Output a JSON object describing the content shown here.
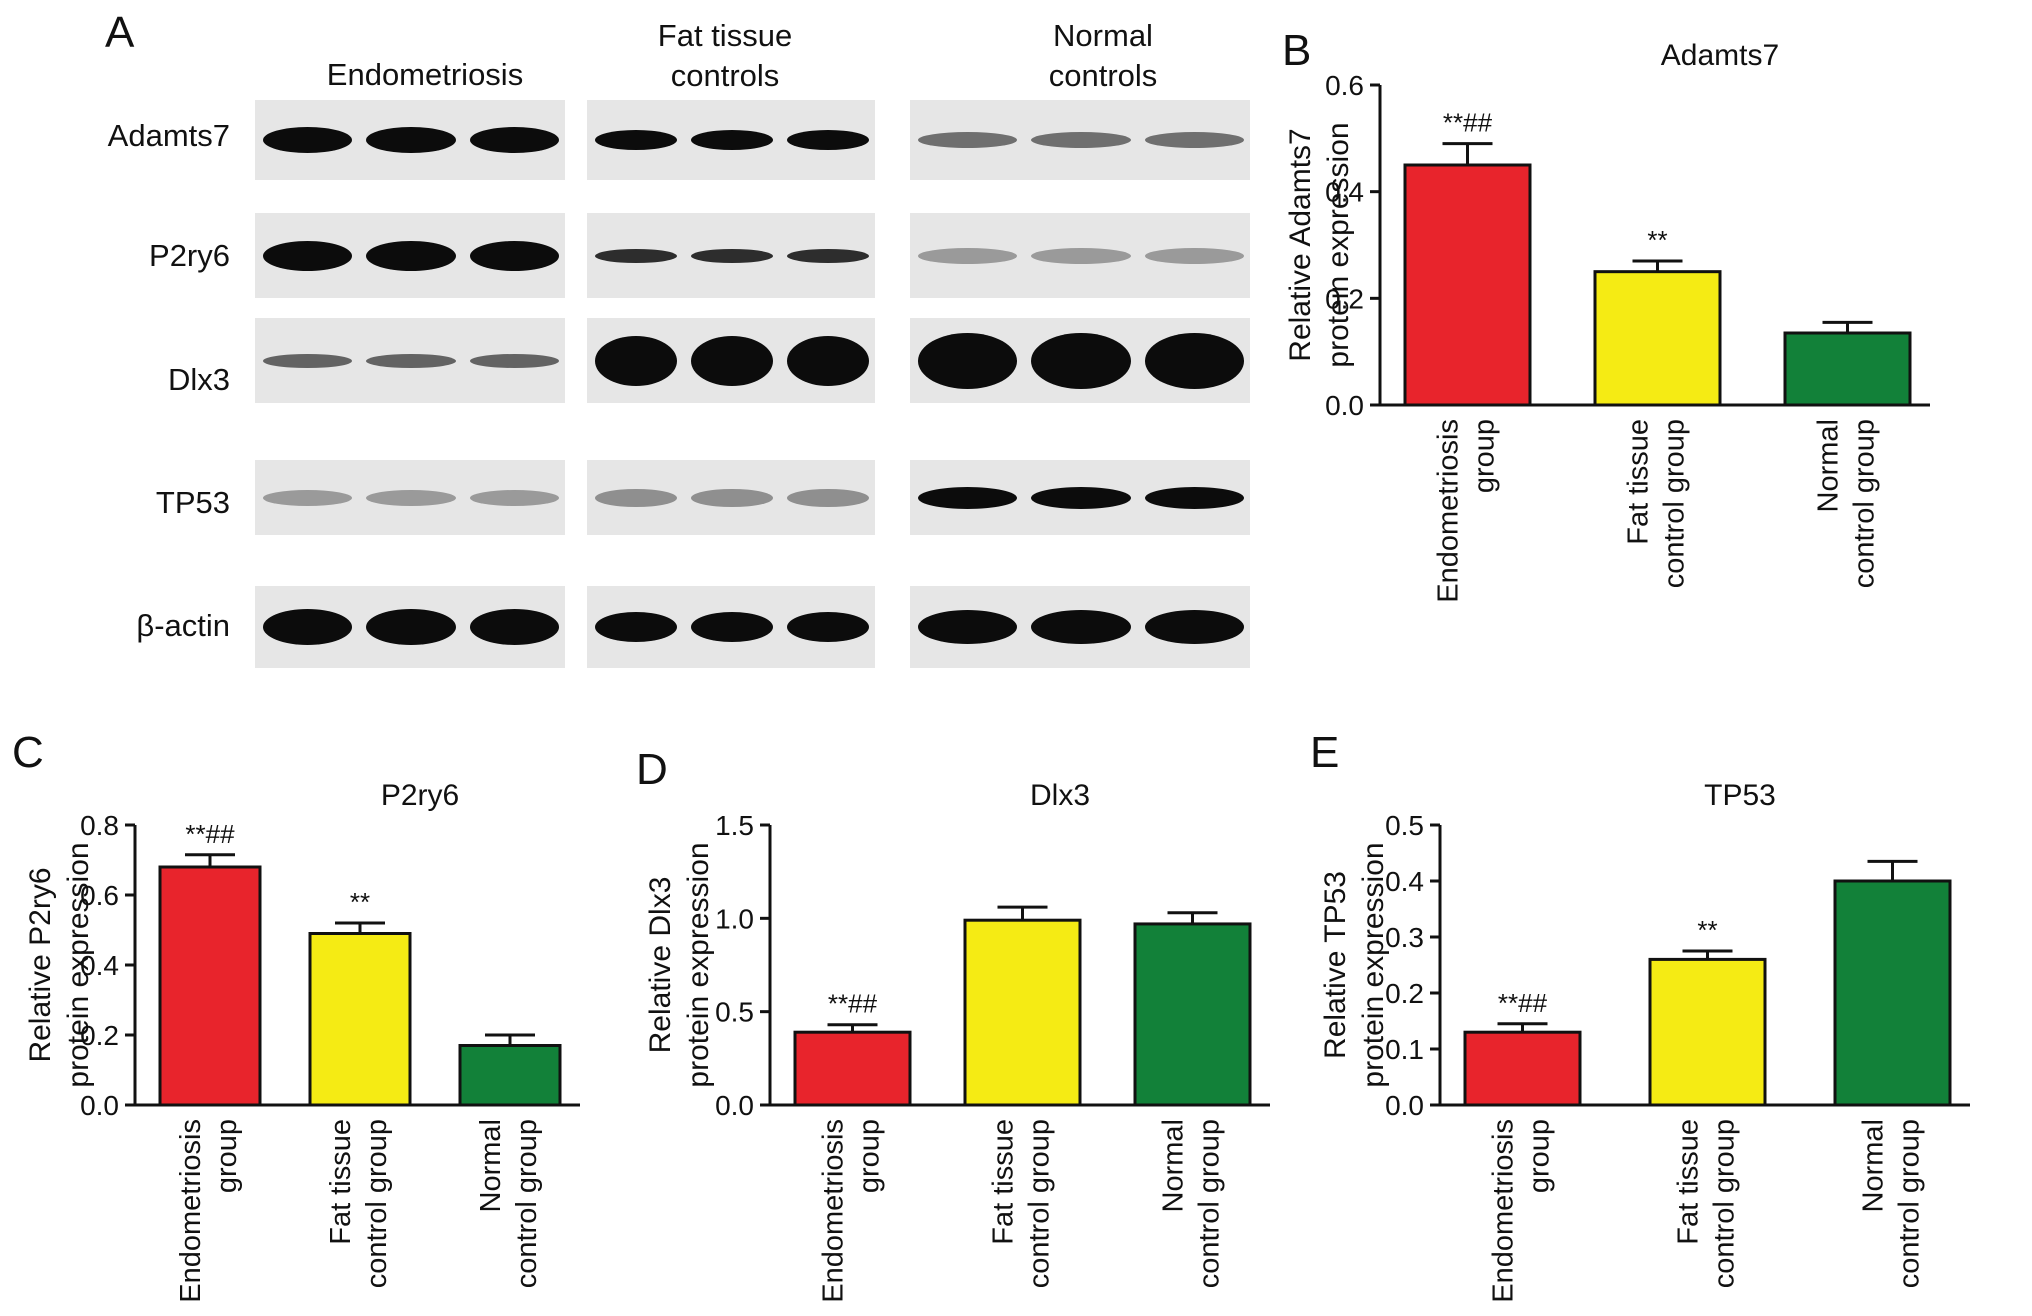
{
  "figure": {
    "panel_letters": [
      "A",
      "B",
      "C",
      "D",
      "E"
    ],
    "western_blot": {
      "columns": [
        {
          "title_lines": [
            "Endometriosis"
          ]
        },
        {
          "title_lines": [
            "Fat tissue",
            "controls"
          ]
        },
        {
          "title_lines": [
            "Normal",
            "controls"
          ]
        }
      ],
      "rows": [
        "Adamts7",
        "P2ry6",
        "Dlx3",
        "TP53",
        "β-actin"
      ]
    }
  },
  "chart_data": [
    {
      "type": "bar",
      "panel": "B",
      "title": "Adamts7",
      "ylabel_lines": [
        "Relative Adamts7",
        "protein expression"
      ],
      "ylim": [
        0,
        0.6
      ],
      "yticks": [
        "0.0",
        "0.2",
        "0.4",
        "0.6"
      ],
      "categories": [
        [
          "Endometriosis",
          "group"
        ],
        [
          "Fat tissue",
          "control group"
        ],
        [
          "Normal",
          "control group"
        ]
      ],
      "values": [
        0.45,
        0.25,
        0.135
      ],
      "errors": [
        0.04,
        0.02,
        0.02
      ],
      "annotations": [
        "**##",
        "**",
        ""
      ],
      "colors": [
        "#e8242c",
        "#f5eb14",
        "#128139"
      ]
    },
    {
      "type": "bar",
      "panel": "C",
      "title": "P2ry6",
      "ylabel_lines": [
        "Relative P2ry6",
        "protein expression"
      ],
      "ylim": [
        0,
        0.8
      ],
      "yticks": [
        "0.0",
        "0.2",
        "0.4",
        "0.6",
        "0.8"
      ],
      "categories": [
        [
          "Endometriosis",
          "group"
        ],
        [
          "Fat tissue",
          "control group"
        ],
        [
          "Normal",
          "control group"
        ]
      ],
      "values": [
        0.68,
        0.49,
        0.17
      ],
      "errors": [
        0.035,
        0.03,
        0.03
      ],
      "annotations": [
        "**##",
        "**",
        ""
      ],
      "colors": [
        "#e8242c",
        "#f5eb14",
        "#128139"
      ]
    },
    {
      "type": "bar",
      "panel": "D",
      "title": "Dlx3",
      "ylabel_lines": [
        "Relative Dlx3",
        "protein expression"
      ],
      "ylim": [
        0,
        1.5
      ],
      "yticks": [
        "0.0",
        "0.5",
        "1.0",
        "1.5"
      ],
      "categories": [
        [
          "Endometriosis",
          "group"
        ],
        [
          "Fat tissue",
          "control group"
        ],
        [
          "Normal",
          "control group"
        ]
      ],
      "values": [
        0.39,
        0.99,
        0.97
      ],
      "errors": [
        0.04,
        0.07,
        0.06
      ],
      "annotations": [
        "**##",
        "",
        ""
      ],
      "colors": [
        "#e8242c",
        "#f5eb14",
        "#128139"
      ]
    },
    {
      "type": "bar",
      "panel": "E",
      "title": "TP53",
      "ylabel_lines": [
        "Relative TP53",
        "protein expression"
      ],
      "ylim": [
        0,
        0.5
      ],
      "yticks": [
        "0.0",
        "0.1",
        "0.2",
        "0.3",
        "0.4",
        "0.5"
      ],
      "categories": [
        [
          "Endometriosis",
          "group"
        ],
        [
          "Fat tissue",
          "control group"
        ],
        [
          "Normal",
          "control group"
        ]
      ],
      "values": [
        0.13,
        0.26,
        0.4
      ],
      "errors": [
        0.015,
        0.015,
        0.035
      ],
      "annotations": [
        "**##",
        "**",
        ""
      ],
      "colors": [
        "#e8242c",
        "#f5eb14",
        "#128139"
      ]
    }
  ]
}
